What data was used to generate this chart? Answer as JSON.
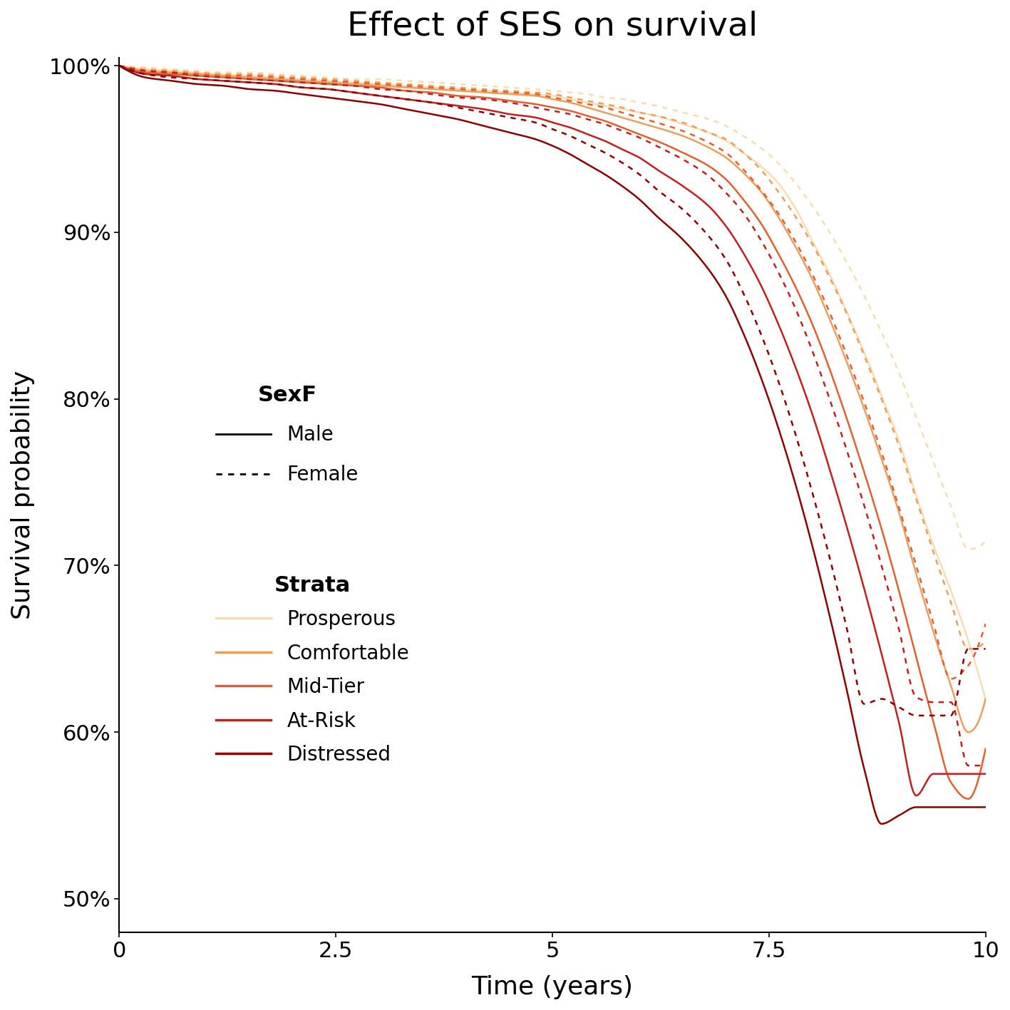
{
  "title": "Effect of SES on survival",
  "xlabel": "Time (years)",
  "ylabel": "Survival probability",
  "xlim": [
    0,
    10
  ],
  "ylim": [
    0.48,
    1.005
  ],
  "yticks": [
    0.5,
    0.6,
    0.7,
    0.8,
    0.9,
    1.0
  ],
  "ytick_labels": [
    "50%",
    "60%",
    "70%",
    "80%",
    "90%",
    "100%"
  ],
  "xticks": [
    0,
    2.5,
    5.0,
    7.5,
    10.0
  ],
  "xtick_labels": [
    "0",
    "2.5",
    "5",
    "7.5",
    "10"
  ],
  "strata": [
    "Prosperous",
    "Comfortable",
    "Mid-Tier",
    "At-Risk",
    "Distressed"
  ],
  "strata_colors": [
    "#F5DEB3",
    "#E8A060",
    "#E06030",
    "#C02020",
    "#8B0000"
  ],
  "sexes": [
    "Male",
    "Female"
  ],
  "sex_linestyles": [
    "solid",
    "dotted"
  ],
  "background_color": "#ffffff",
  "linewidth": 1.8,
  "curves": {
    "Prosperous_Male": {
      "t": [
        0.0,
        0.3,
        0.6,
        0.9,
        1.2,
        1.5,
        1.8,
        2.1,
        2.4,
        2.7,
        3.0,
        3.3,
        3.6,
        3.9,
        4.2,
        4.5,
        4.8,
        5.0,
        5.2,
        5.4,
        5.6,
        5.8,
        6.0,
        6.2,
        6.5,
        6.8,
        7.0,
        7.2,
        7.4,
        7.6,
        7.8,
        8.0,
        8.2,
        8.4,
        8.6,
        8.8,
        9.0,
        9.2,
        9.4,
        9.6,
        9.8,
        10.0
      ],
      "s": [
        1.0,
        0.998,
        0.997,
        0.996,
        0.995,
        0.994,
        0.993,
        0.992,
        0.991,
        0.99,
        0.989,
        0.988,
        0.987,
        0.986,
        0.985,
        0.984,
        0.983,
        0.982,
        0.98,
        0.978,
        0.976,
        0.974,
        0.972,
        0.97,
        0.965,
        0.96,
        0.955,
        0.948,
        0.94,
        0.93,
        0.915,
        0.895,
        0.875,
        0.852,
        0.828,
        0.802,
        0.775,
        0.742,
        0.712,
        0.685,
        0.655,
        0.62
      ]
    },
    "Prosperous_Female": {
      "t": [
        0.0,
        0.3,
        0.6,
        0.9,
        1.2,
        1.5,
        1.8,
        2.1,
        2.4,
        2.7,
        3.0,
        3.3,
        3.6,
        3.9,
        4.2,
        4.5,
        4.8,
        5.0,
        5.2,
        5.4,
        5.6,
        5.8,
        6.0,
        6.2,
        6.5,
        6.8,
        7.0,
        7.2,
        7.4,
        7.6,
        7.8,
        8.0,
        8.2,
        8.4,
        8.6,
        8.8,
        9.0,
        9.2,
        9.4,
        9.6,
        9.8,
        10.0
      ],
      "s": [
        1.0,
        0.999,
        0.998,
        0.997,
        0.996,
        0.996,
        0.995,
        0.994,
        0.993,
        0.992,
        0.992,
        0.991,
        0.99,
        0.989,
        0.988,
        0.987,
        0.986,
        0.985,
        0.984,
        0.983,
        0.981,
        0.98,
        0.978,
        0.976,
        0.972,
        0.968,
        0.964,
        0.958,
        0.951,
        0.942,
        0.93,
        0.916,
        0.9,
        0.882,
        0.862,
        0.84,
        0.816,
        0.789,
        0.762,
        0.736,
        0.71,
        0.715
      ]
    },
    "Comfortable_Male": {
      "t": [
        0.0,
        0.3,
        0.6,
        0.9,
        1.2,
        1.5,
        1.8,
        2.1,
        2.4,
        2.7,
        3.0,
        3.3,
        3.6,
        3.9,
        4.2,
        4.5,
        4.8,
        5.0,
        5.2,
        5.4,
        5.6,
        5.8,
        6.0,
        6.2,
        6.5,
        6.8,
        7.0,
        7.2,
        7.4,
        7.6,
        7.8,
        8.0,
        8.2,
        8.4,
        8.6,
        8.8,
        9.0,
        9.2,
        9.4,
        9.6,
        9.8,
        10.0
      ],
      "s": [
        1.0,
        0.997,
        0.996,
        0.995,
        0.994,
        0.993,
        0.992,
        0.991,
        0.99,
        0.989,
        0.988,
        0.987,
        0.986,
        0.985,
        0.984,
        0.983,
        0.982,
        0.98,
        0.978,
        0.975,
        0.972,
        0.969,
        0.966,
        0.963,
        0.958,
        0.951,
        0.945,
        0.936,
        0.925,
        0.91,
        0.892,
        0.872,
        0.848,
        0.822,
        0.794,
        0.764,
        0.732,
        0.695,
        0.66,
        0.628,
        0.6,
        0.62
      ]
    },
    "Comfortable_Female": {
      "t": [
        0.0,
        0.3,
        0.6,
        0.9,
        1.2,
        1.5,
        1.8,
        2.1,
        2.4,
        2.7,
        3.0,
        3.3,
        3.6,
        3.9,
        4.2,
        4.5,
        4.8,
        5.0,
        5.2,
        5.4,
        5.6,
        5.8,
        6.0,
        6.2,
        6.5,
        6.8,
        7.0,
        7.2,
        7.4,
        7.6,
        7.8,
        8.0,
        8.2,
        8.4,
        8.6,
        8.8,
        9.0,
        9.2,
        9.4,
        9.6,
        9.8,
        10.0
      ],
      "s": [
        1.0,
        0.998,
        0.997,
        0.996,
        0.995,
        0.995,
        0.994,
        0.993,
        0.992,
        0.991,
        0.99,
        0.989,
        0.988,
        0.987,
        0.986,
        0.985,
        0.984,
        0.983,
        0.981,
        0.979,
        0.977,
        0.975,
        0.972,
        0.97,
        0.966,
        0.96,
        0.956,
        0.948,
        0.938,
        0.925,
        0.91,
        0.893,
        0.873,
        0.851,
        0.826,
        0.8,
        0.772,
        0.74,
        0.708,
        0.678,
        0.65,
        0.655
      ]
    },
    "Mid-Tier_Male": {
      "t": [
        0.0,
        0.3,
        0.6,
        0.9,
        1.2,
        1.5,
        1.8,
        2.1,
        2.4,
        2.7,
        3.0,
        3.3,
        3.6,
        3.9,
        4.2,
        4.5,
        4.8,
        5.0,
        5.2,
        5.4,
        5.6,
        5.8,
        6.0,
        6.2,
        6.5,
        6.8,
        7.0,
        7.2,
        7.4,
        7.6,
        7.8,
        8.0,
        8.2,
        8.4,
        8.6,
        8.8,
        9.0,
        9.2,
        9.4,
        9.6,
        9.8,
        10.0
      ],
      "s": [
        1.0,
        0.996,
        0.995,
        0.994,
        0.993,
        0.992,
        0.991,
        0.99,
        0.989,
        0.988,
        0.987,
        0.985,
        0.984,
        0.982,
        0.981,
        0.979,
        0.977,
        0.975,
        0.973,
        0.97,
        0.967,
        0.963,
        0.959,
        0.955,
        0.948,
        0.94,
        0.932,
        0.92,
        0.906,
        0.888,
        0.868,
        0.845,
        0.818,
        0.788,
        0.756,
        0.722,
        0.685,
        0.645,
        0.606,
        0.57,
        0.56,
        0.59
      ]
    },
    "Mid-Tier_Female": {
      "t": [
        0.0,
        0.3,
        0.6,
        0.9,
        1.2,
        1.5,
        1.8,
        2.1,
        2.4,
        2.7,
        3.0,
        3.3,
        3.6,
        3.9,
        4.2,
        4.5,
        4.8,
        5.0,
        5.2,
        5.4,
        5.6,
        5.8,
        6.0,
        6.2,
        6.5,
        6.8,
        7.0,
        7.2,
        7.4,
        7.6,
        7.8,
        8.0,
        8.2,
        8.4,
        8.6,
        8.8,
        9.0,
        9.2,
        9.4,
        9.6,
        9.8,
        10.0
      ],
      "s": [
        1.0,
        0.997,
        0.996,
        0.995,
        0.994,
        0.994,
        0.993,
        0.992,
        0.991,
        0.99,
        0.989,
        0.988,
        0.987,
        0.986,
        0.985,
        0.984,
        0.983,
        0.981,
        0.979,
        0.977,
        0.975,
        0.972,
        0.969,
        0.966,
        0.961,
        0.954,
        0.948,
        0.938,
        0.926,
        0.912,
        0.895,
        0.875,
        0.852,
        0.826,
        0.798,
        0.768,
        0.735,
        0.7,
        0.665,
        0.632,
        0.64,
        0.665
      ]
    },
    "At-Risk_Male": {
      "t": [
        0.0,
        0.3,
        0.6,
        0.9,
        1.2,
        1.5,
        1.8,
        2.1,
        2.4,
        2.7,
        3.0,
        3.3,
        3.6,
        3.9,
        4.2,
        4.5,
        4.8,
        5.0,
        5.2,
        5.4,
        5.6,
        5.8,
        6.0,
        6.2,
        6.5,
        6.8,
        7.0,
        7.2,
        7.4,
        7.6,
        7.8,
        8.0,
        8.2,
        8.4,
        8.6,
        8.8,
        9.0,
        9.2,
        9.4,
        9.6,
        9.8,
        10.0
      ],
      "s": [
        1.0,
        0.995,
        0.994,
        0.992,
        0.991,
        0.99,
        0.989,
        0.987,
        0.986,
        0.984,
        0.982,
        0.98,
        0.978,
        0.976,
        0.974,
        0.971,
        0.969,
        0.966,
        0.963,
        0.959,
        0.955,
        0.95,
        0.945,
        0.938,
        0.928,
        0.916,
        0.904,
        0.888,
        0.869,
        0.846,
        0.82,
        0.791,
        0.758,
        0.723,
        0.686,
        0.647,
        0.606,
        0.562,
        0.575,
        0.575,
        0.575,
        0.575
      ]
    },
    "At-Risk_Female": {
      "t": [
        0.0,
        0.3,
        0.6,
        0.9,
        1.2,
        1.5,
        1.8,
        2.1,
        2.4,
        2.7,
        3.0,
        3.3,
        3.6,
        3.9,
        4.2,
        4.5,
        4.8,
        5.0,
        5.2,
        5.4,
        5.6,
        5.8,
        6.0,
        6.2,
        6.5,
        6.8,
        7.0,
        7.2,
        7.4,
        7.6,
        7.8,
        8.0,
        8.2,
        8.4,
        8.6,
        8.8,
        9.0,
        9.2,
        9.4,
        9.6,
        9.8,
        10.0
      ],
      "s": [
        1.0,
        0.997,
        0.996,
        0.994,
        0.993,
        0.992,
        0.991,
        0.99,
        0.989,
        0.988,
        0.986,
        0.985,
        0.983,
        0.981,
        0.98,
        0.978,
        0.975,
        0.973,
        0.971,
        0.968,
        0.965,
        0.961,
        0.957,
        0.952,
        0.944,
        0.934,
        0.924,
        0.912,
        0.896,
        0.877,
        0.855,
        0.829,
        0.8,
        0.769,
        0.736,
        0.7,
        0.662,
        0.621,
        0.618,
        0.618,
        0.58,
        0.58
      ]
    },
    "Distressed_Male": {
      "t": [
        0.0,
        0.3,
        0.6,
        0.9,
        1.2,
        1.5,
        1.8,
        2.1,
        2.4,
        2.7,
        3.0,
        3.3,
        3.6,
        3.9,
        4.2,
        4.5,
        4.8,
        5.0,
        5.2,
        5.4,
        5.6,
        5.8,
        6.0,
        6.2,
        6.5,
        6.8,
        7.0,
        7.2,
        7.4,
        7.6,
        7.8,
        8.0,
        8.2,
        8.4,
        8.6,
        8.8,
        9.0,
        9.2,
        9.4,
        9.6,
        9.8,
        10.0
      ],
      "s": [
        1.0,
        0.993,
        0.991,
        0.989,
        0.988,
        0.986,
        0.985,
        0.983,
        0.981,
        0.979,
        0.977,
        0.974,
        0.971,
        0.968,
        0.964,
        0.96,
        0.956,
        0.952,
        0.947,
        0.941,
        0.935,
        0.928,
        0.92,
        0.91,
        0.896,
        0.878,
        0.862,
        0.84,
        0.814,
        0.784,
        0.75,
        0.712,
        0.67,
        0.625,
        0.578,
        0.545,
        0.55,
        0.555,
        0.555,
        0.555,
        0.555,
        0.555
      ]
    },
    "Distressed_Female": {
      "t": [
        0.0,
        0.3,
        0.6,
        0.9,
        1.2,
        1.5,
        1.8,
        2.1,
        2.4,
        2.7,
        3.0,
        3.3,
        3.6,
        3.9,
        4.2,
        4.5,
        4.8,
        5.0,
        5.2,
        5.4,
        5.6,
        5.8,
        6.0,
        6.2,
        6.5,
        6.8,
        7.0,
        7.2,
        7.4,
        7.6,
        7.8,
        8.0,
        8.2,
        8.4,
        8.6,
        8.8,
        9.0,
        9.2,
        9.4,
        9.6,
        9.8,
        10.0
      ],
      "s": [
        1.0,
        0.995,
        0.993,
        0.992,
        0.991,
        0.99,
        0.989,
        0.987,
        0.986,
        0.984,
        0.982,
        0.98,
        0.978,
        0.975,
        0.972,
        0.969,
        0.966,
        0.962,
        0.958,
        0.953,
        0.948,
        0.942,
        0.935,
        0.926,
        0.914,
        0.898,
        0.884,
        0.864,
        0.84,
        0.812,
        0.78,
        0.744,
        0.705,
        0.662,
        0.617,
        0.62,
        0.615,
        0.61,
        0.61,
        0.61,
        0.65,
        0.65
      ]
    }
  }
}
